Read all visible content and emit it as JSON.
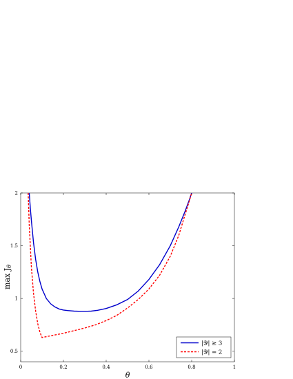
{
  "chart_data": {
    "type": "line",
    "xlabel": "θ",
    "ylabel": "max J_θ",
    "ylabel_parts": {
      "base": "max J",
      "sub": "θ"
    },
    "xlim": [
      0,
      1
    ],
    "ylim": [
      0.4,
      2
    ],
    "x_ticks": [
      0,
      0.2,
      0.4,
      0.6,
      0.8,
      1
    ],
    "x_tick_labels": [
      "0",
      "0.2",
      "0.4",
      "0.6",
      "0.8",
      "1"
    ],
    "y_ticks": [
      0.5,
      1,
      1.5,
      2
    ],
    "y_tick_labels": [
      "0.5",
      "1",
      "1.5",
      "2"
    ],
    "grid": false,
    "legend_position": "bottom-right",
    "series": [
      {
        "name": "|𝒴| ≥ 3",
        "color": "#0000cc",
        "style": "solid",
        "x": [
          0.04,
          0.045,
          0.05,
          0.06,
          0.07,
          0.08,
          0.09,
          0.1,
          0.12,
          0.14,
          0.16,
          0.18,
          0.2,
          0.22,
          0.25,
          0.28,
          0.3,
          0.33,
          0.36,
          0.4,
          0.45,
          0.5,
          0.55,
          0.6,
          0.65,
          0.7,
          0.74,
          0.77,
          0.79,
          0.8
        ],
        "y": [
          2.0,
          1.86,
          1.74,
          1.53,
          1.37,
          1.25,
          1.16,
          1.09,
          1.0,
          0.95,
          0.92,
          0.9,
          0.89,
          0.885,
          0.88,
          0.878,
          0.878,
          0.88,
          0.888,
          0.905,
          0.94,
          0.99,
          1.07,
          1.18,
          1.32,
          1.5,
          1.68,
          1.83,
          1.94,
          2.0
        ]
      },
      {
        "name": "|𝒴| = 2",
        "color": "#ff0000",
        "style": "dashed",
        "x": [
          0.035,
          0.04,
          0.05,
          0.06,
          0.07,
          0.08,
          0.09,
          0.1,
          0.15,
          0.2,
          0.25,
          0.3,
          0.35,
          0.4,
          0.45,
          0.5,
          0.55,
          0.6,
          0.65,
          0.7,
          0.74,
          0.77,
          0.79,
          0.8
        ],
        "y": [
          2.0,
          1.7,
          1.3,
          1.05,
          0.88,
          0.76,
          0.68,
          0.63,
          0.65,
          0.67,
          0.695,
          0.72,
          0.75,
          0.79,
          0.84,
          0.91,
          0.99,
          1.09,
          1.22,
          1.4,
          1.6,
          1.8,
          1.93,
          2.0
        ]
      }
    ]
  }
}
